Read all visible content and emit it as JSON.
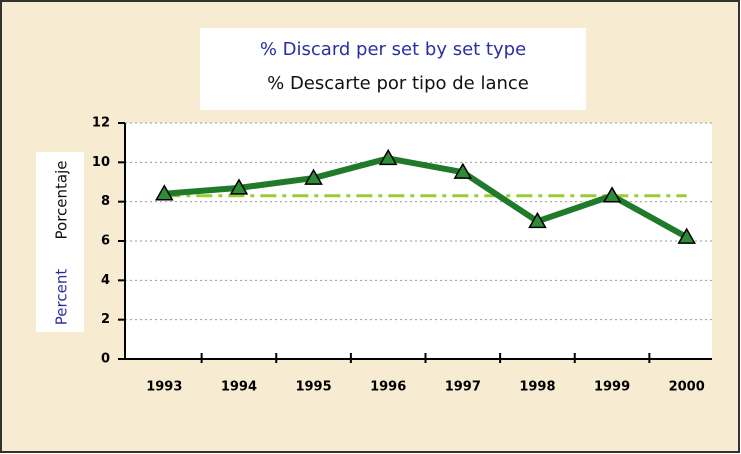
{
  "chart_data": {
    "type": "line",
    "title": "% Discard per set by set type",
    "subtitle": "% Descarte por tipo de lance",
    "y_label_en": "Percent",
    "y_label_es": "Porcentaje",
    "categories": [
      "1993",
      "1994",
      "1995",
      "1996",
      "1997",
      "1998",
      "1999",
      "2000"
    ],
    "values": [
      8.4,
      8.7,
      9.2,
      10.2,
      9.5,
      7.0,
      8.3,
      6.2
    ],
    "color": "#1f7a2a",
    "marker_color": "#2e8b3a",
    "reference_line": {
      "value": 8.3,
      "color": "#9acd32"
    },
    "ylim": [
      0,
      12
    ],
    "yticks": [
      0,
      2,
      4,
      6,
      8,
      10,
      12
    ],
    "grid": true
  }
}
